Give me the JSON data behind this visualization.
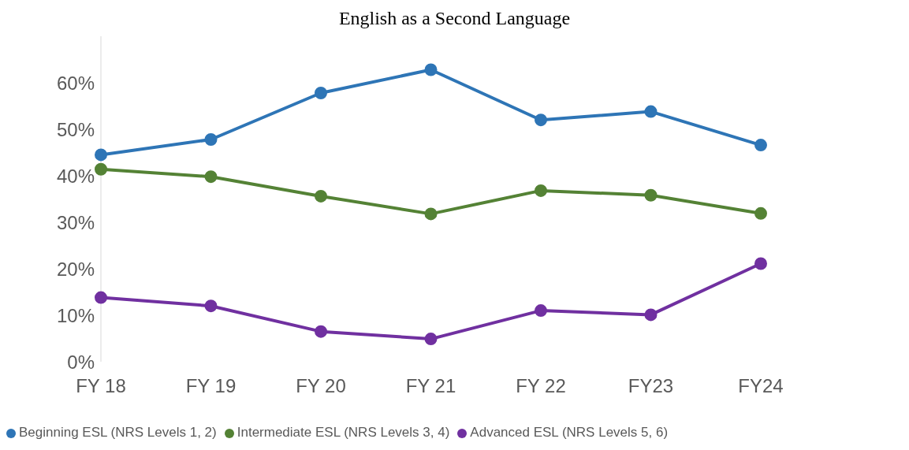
{
  "chart_data": {
    "type": "line",
    "title": "English as a Second Language",
    "categories": [
      "FY 18",
      "FY 19",
      "FY 20",
      "FY 21",
      "FY 22",
      "FY23",
      "FY24"
    ],
    "series": [
      {
        "name": "Beginning ESL (NRS Levels 1, 2)",
        "color": "#2e75b6",
        "values": [
          44.5,
          47.8,
          57.8,
          62.8,
          52.0,
          53.8,
          46.6
        ]
      },
      {
        "name": "Intermediate ESL (NRS Levels 3, 4)",
        "color": "#548235",
        "values": [
          41.4,
          39.8,
          35.6,
          31.8,
          36.8,
          35.8,
          31.9
        ]
      },
      {
        "name": "Advanced ESL (NRS Levels 5, 6)",
        "color": "#7030a0",
        "values": [
          13.8,
          12.0,
          6.5,
          4.9,
          11.0,
          10.1,
          21.1
        ]
      }
    ],
    "yticks": [
      {
        "value": 0,
        "label": "0%"
      },
      {
        "value": 10,
        "label": "10%"
      },
      {
        "value": 20,
        "label": "20%"
      },
      {
        "value": 30,
        "label": "30%"
      },
      {
        "value": 40,
        "label": "40%"
      },
      {
        "value": 50,
        "label": "50%"
      },
      {
        "value": 60,
        "label": "60%"
      }
    ],
    "ylim": [
      0,
      70
    ],
    "grid": false,
    "legend": "bottom",
    "marker": "circle",
    "line_style": "solid"
  }
}
